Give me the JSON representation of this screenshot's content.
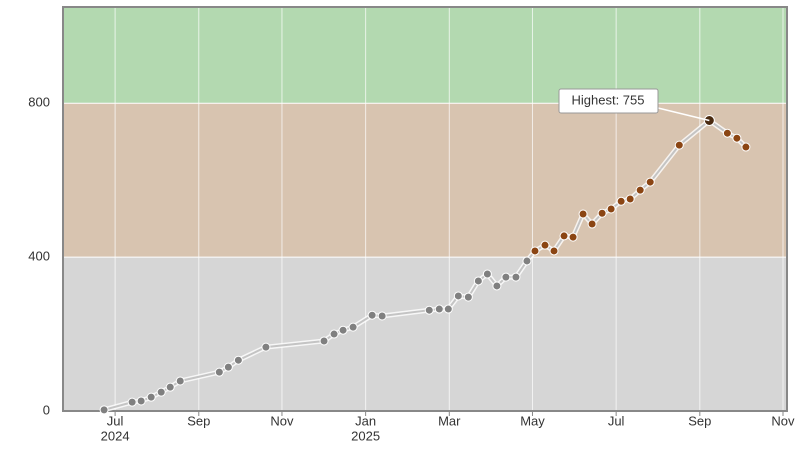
{
  "chart_data": {
    "type": "line",
    "x": [
      2024.478,
      2024.534,
      2024.552,
      2024.572,
      2024.592,
      2024.61,
      2024.63,
      2024.708,
      2024.726,
      2024.746,
      2024.801,
      2024.917,
      2024.937,
      2024.955,
      2024.975,
      2025.013,
      2025.033,
      2025.127,
      2025.147,
      2025.165,
      2025.185,
      2025.205,
      2025.225,
      2025.243,
      2025.262,
      2025.28,
      2025.3,
      2025.322,
      2025.338,
      2025.358,
      2025.376,
      2025.396,
      2025.414,
      2025.434,
      2025.452,
      2025.472,
      2025.49,
      2025.51,
      2025.528,
      2025.548,
      2025.568,
      2025.626,
      2025.686,
      2025.722,
      2025.741,
      2025.759
    ],
    "series": [
      {
        "color": "#c4c4c4",
        "values": [
          3,
          23,
          26,
          36,
          49,
          62,
          78,
          101,
          114,
          132,
          166,
          182,
          200,
          210,
          218,
          249,
          247,
          262,
          265,
          265,
          299,
          296,
          338,
          356,
          325,
          348,
          348,
          390,
          416,
          431,
          416,
          455,
          452,
          512,
          486,
          514,
          525,
          545,
          551,
          574,
          595,
          691,
          755,
          722,
          709,
          686
        ]
      }
    ],
    "bands": [
      {
        "from": 0,
        "color": "#d6d6d6",
        "marker_color": "#808080"
      },
      {
        "from": 400,
        "color": "#d8c4b0",
        "marker_color": "#8b4513"
      },
      {
        "from": 800,
        "color": "#b3d9b0",
        "marker_color": "#4a8a44"
      }
    ],
    "annotation": "Highest: 755",
    "xlim": [
      2024.396,
      2025.841
    ],
    "ylim": [
      0,
      1050
    ],
    "xticks": [
      {
        "value": 2024.5,
        "label": "Jul"
      },
      {
        "value": 2024.667,
        "label": "Sep"
      },
      {
        "value": 2024.833,
        "label": "Nov"
      },
      {
        "value": 2025.0,
        "label": "Jan"
      },
      {
        "value": 2025.167,
        "label": "Mar"
      },
      {
        "value": 2025.333,
        "label": "May"
      },
      {
        "value": 2025.5,
        "label": "Jul"
      },
      {
        "value": 2025.667,
        "label": "Sep"
      },
      {
        "value": 2025.833,
        "label": "Nov"
      }
    ],
    "x_year_labels": [
      {
        "value": 2024.5,
        "label": "2024"
      },
      {
        "value": 2025.0,
        "label": "2025"
      }
    ],
    "yticks": [
      0,
      400,
      800
    ],
    "grid": true
  }
}
